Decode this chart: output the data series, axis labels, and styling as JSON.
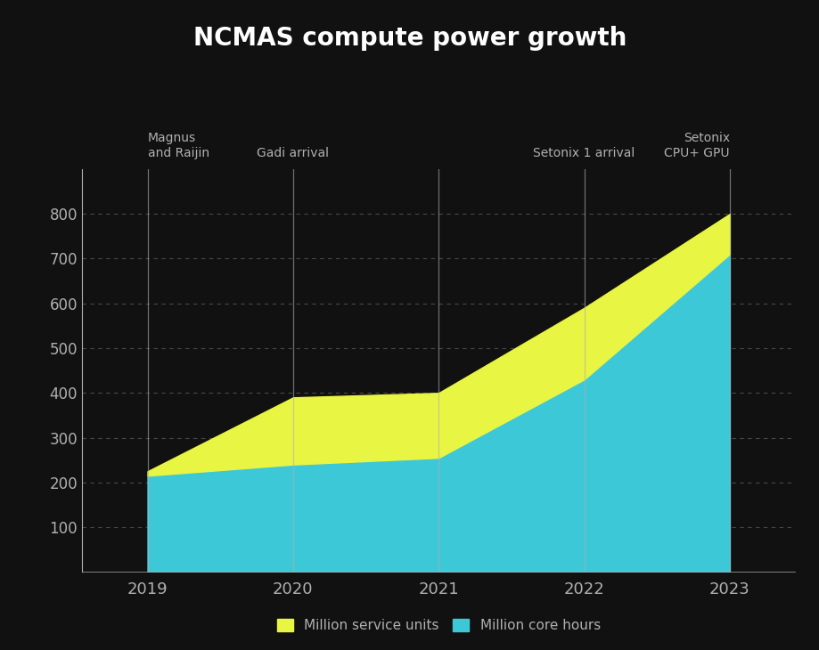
{
  "title": "NCMAS compute power growth",
  "background_color": "#111111",
  "text_color": "#b0b0b0",
  "years": [
    2019,
    2020,
    2021,
    2022,
    2023
  ],
  "core_hours": [
    215,
    240,
    255,
    430,
    710
  ],
  "service_units": [
    10,
    150,
    145,
    160,
    90
  ],
  "color_service_units": "#e8f542",
  "color_core_hours": "#3dc8d8",
  "ylim": [
    0,
    900
  ],
  "yticks": [
    100,
    200,
    300,
    400,
    500,
    600,
    700,
    800
  ],
  "annotations": [
    {
      "x": 2019,
      "label": "Magnus\nand Raijin",
      "ha": "left"
    },
    {
      "x": 2020,
      "label": "Gadi arrival",
      "ha": "center"
    },
    {
      "x": 2021,
      "label": "",
      "ha": "center"
    },
    {
      "x": 2022,
      "label": "Setonix 1 arrival",
      "ha": "center"
    },
    {
      "x": 2023,
      "label": "Setonix\nCPU+ GPU",
      "ha": "right"
    }
  ],
  "legend_label_service": "Million service units",
  "legend_label_core": "Million core hours",
  "title_fontsize": 20,
  "tick_fontsize": 12,
  "annotation_fontsize": 10,
  "legend_fontsize": 11,
  "xlim_left": 2018.55,
  "xlim_right": 2023.45
}
